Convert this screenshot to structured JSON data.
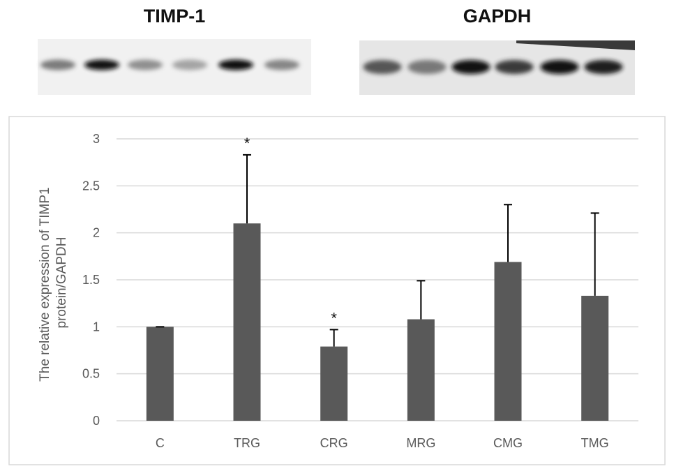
{
  "blots": {
    "timp1": {
      "label": "TIMP-1",
      "band_intensity": [
        0.55,
        0.95,
        0.45,
        0.35,
        0.98,
        0.5
      ]
    },
    "gapdh": {
      "label": "GAPDH",
      "band_intensity": [
        0.7,
        0.55,
        0.95,
        0.8,
        0.95,
        0.9
      ]
    }
  },
  "colors": {
    "bar": "#595959",
    "error_bar": "#000000",
    "grid": "#d9d9d9",
    "axis_text": "#595959",
    "frame": "#d9d9d9"
  },
  "chart_data": {
    "type": "bar",
    "title": "",
    "xlabel": "",
    "ylabel": "The relative expression of TIMP1 protein/GAPDH",
    "categories": [
      "C",
      "TRG",
      "CRG",
      "MRG",
      "CMG",
      "TMG"
    ],
    "values": [
      1.0,
      2.1,
      0.79,
      1.08,
      1.69,
      1.33
    ],
    "error_plus": [
      0.0,
      0.73,
      0.18,
      0.41,
      0.61,
      0.88
    ],
    "significance": [
      "",
      "*",
      "*",
      "",
      "",
      ""
    ],
    "ylim": [
      0,
      3
    ],
    "yticks": [
      "0",
      "0.5",
      "1",
      "1.5",
      "2",
      "2.5",
      "3"
    ],
    "ytick_values": [
      0,
      0.5,
      1,
      1.5,
      2,
      2.5,
      3
    ],
    "grid": true,
    "legend": "none"
  }
}
